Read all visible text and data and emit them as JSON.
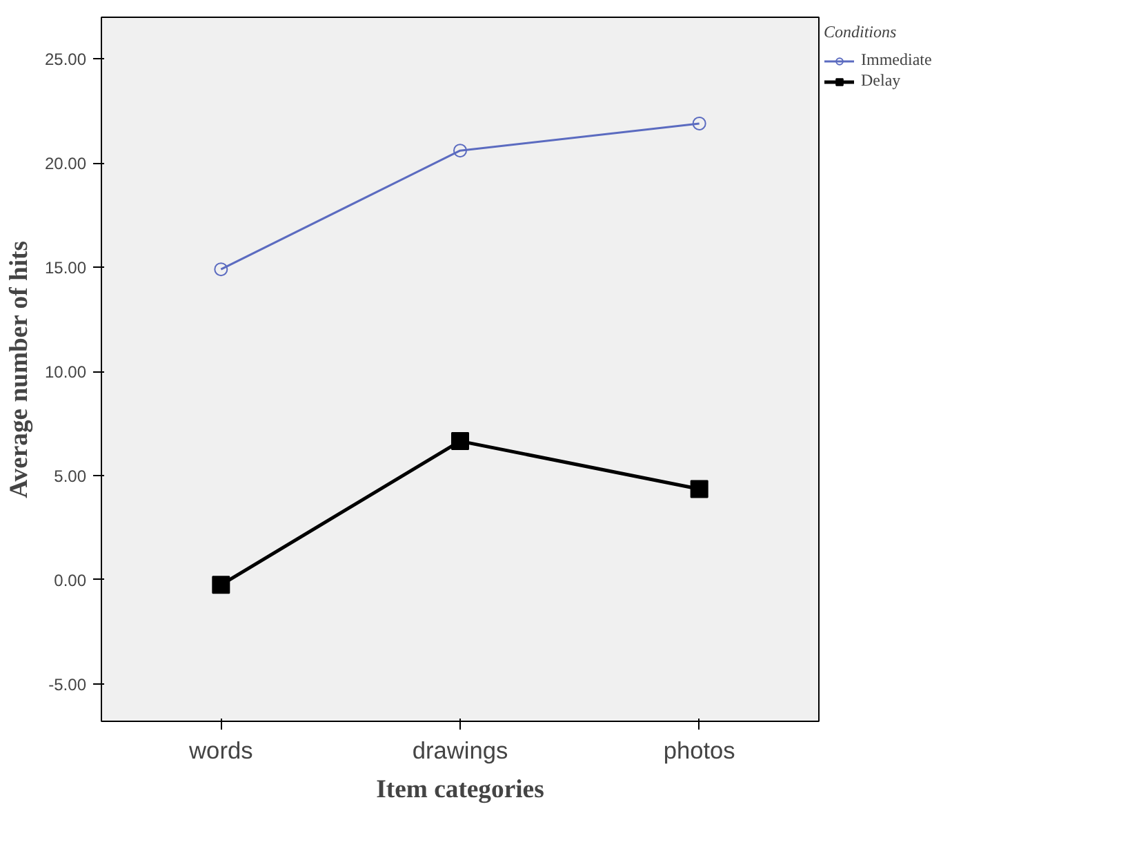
{
  "chart_data": {
    "type": "line",
    "xlabel": "Item categories",
    "ylabel": "Average number of hits",
    "legend_title": "Conditions",
    "legend": "top right",
    "categories": [
      "words",
      "drawings",
      "photos"
    ],
    "series": [
      {
        "name": "Immediate",
        "color": "#5b6bc0",
        "marker": "circle",
        "values": [
          14.9,
          20.6,
          21.9
        ]
      },
      {
        "name": "Delay",
        "color": "#000000",
        "marker": "square",
        "values": [
          -0.25,
          6.65,
          4.35
        ]
      }
    ],
    "ylim": [
      -6.8,
      27.0
    ],
    "yticks": [
      {
        "value": -5,
        "label": "-5.00"
      },
      {
        "value": 0,
        "label": "0.00"
      },
      {
        "value": 5,
        "label": "5.00"
      },
      {
        "value": 10,
        "label": "10.00"
      },
      {
        "value": 15,
        "label": "15.00"
      },
      {
        "value": 20,
        "label": "20.00"
      },
      {
        "value": 25,
        "label": "25.00"
      }
    ],
    "grid": false
  }
}
